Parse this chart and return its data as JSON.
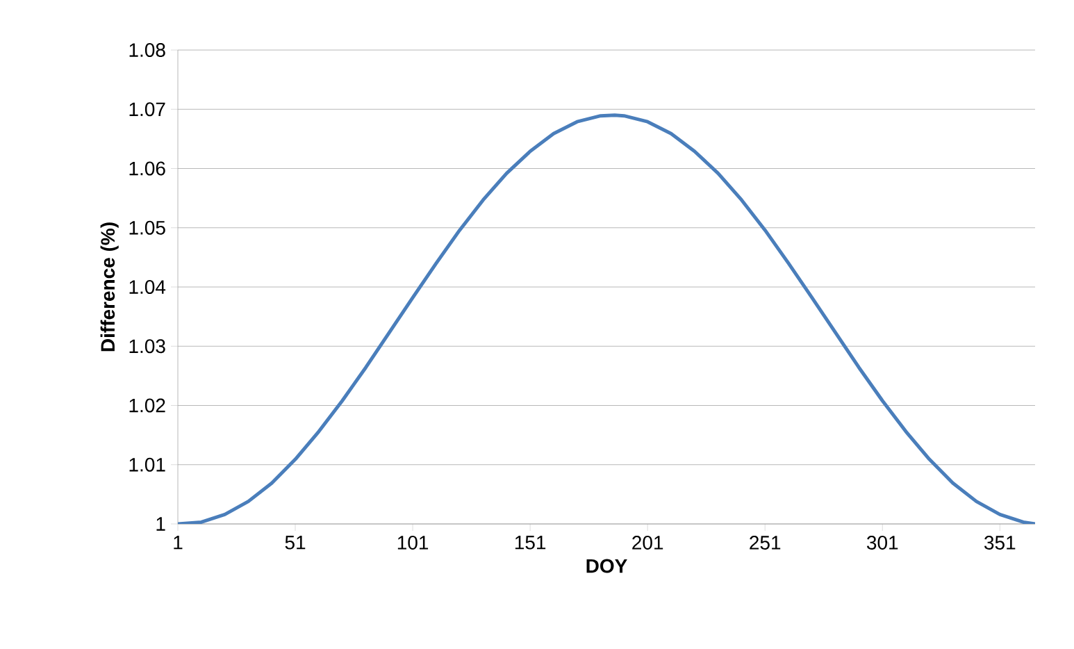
{
  "chart_data": {
    "type": "line",
    "xlabel": "DOY",
    "ylabel": "Difference (%)",
    "x": [
      1,
      11,
      21,
      31,
      41,
      51,
      61,
      71,
      81,
      91,
      101,
      111,
      121,
      131,
      141,
      151,
      161,
      171,
      181,
      187,
      191,
      201,
      211,
      221,
      231,
      241,
      251,
      261,
      271,
      281,
      291,
      301,
      311,
      321,
      331,
      341,
      351,
      361,
      366
    ],
    "series": [
      {
        "color": "#4a7ebb",
        "values": [
          1.0,
          1.0003,
          1.0016,
          1.0038,
          1.0069,
          1.0109,
          1.0156,
          1.0208,
          1.0264,
          1.0323,
          1.0382,
          1.044,
          1.0496,
          1.0547,
          1.0592,
          1.0629,
          1.0659,
          1.0679,
          1.0689,
          1.069,
          1.0689,
          1.0679,
          1.0659,
          1.0629,
          1.0592,
          1.0547,
          1.0496,
          1.044,
          1.0382,
          1.0323,
          1.0264,
          1.0208,
          1.0156,
          1.0109,
          1.0069,
          1.0038,
          1.0016,
          1.0003,
          1.0
        ]
      }
    ],
    "xlim": [
      1,
      366
    ],
    "xticks": [
      1,
      51,
      101,
      151,
      201,
      251,
      301,
      351
    ],
    "ylim": [
      1,
      1.08
    ],
    "yticks": [
      {
        "value": 1,
        "label": "1"
      },
      1.01,
      1.02,
      1.03,
      1.04,
      1.05,
      1.06,
      1.07,
      1.08
    ],
    "grid": "y",
    "marker": "none",
    "line_style": "solid"
  }
}
